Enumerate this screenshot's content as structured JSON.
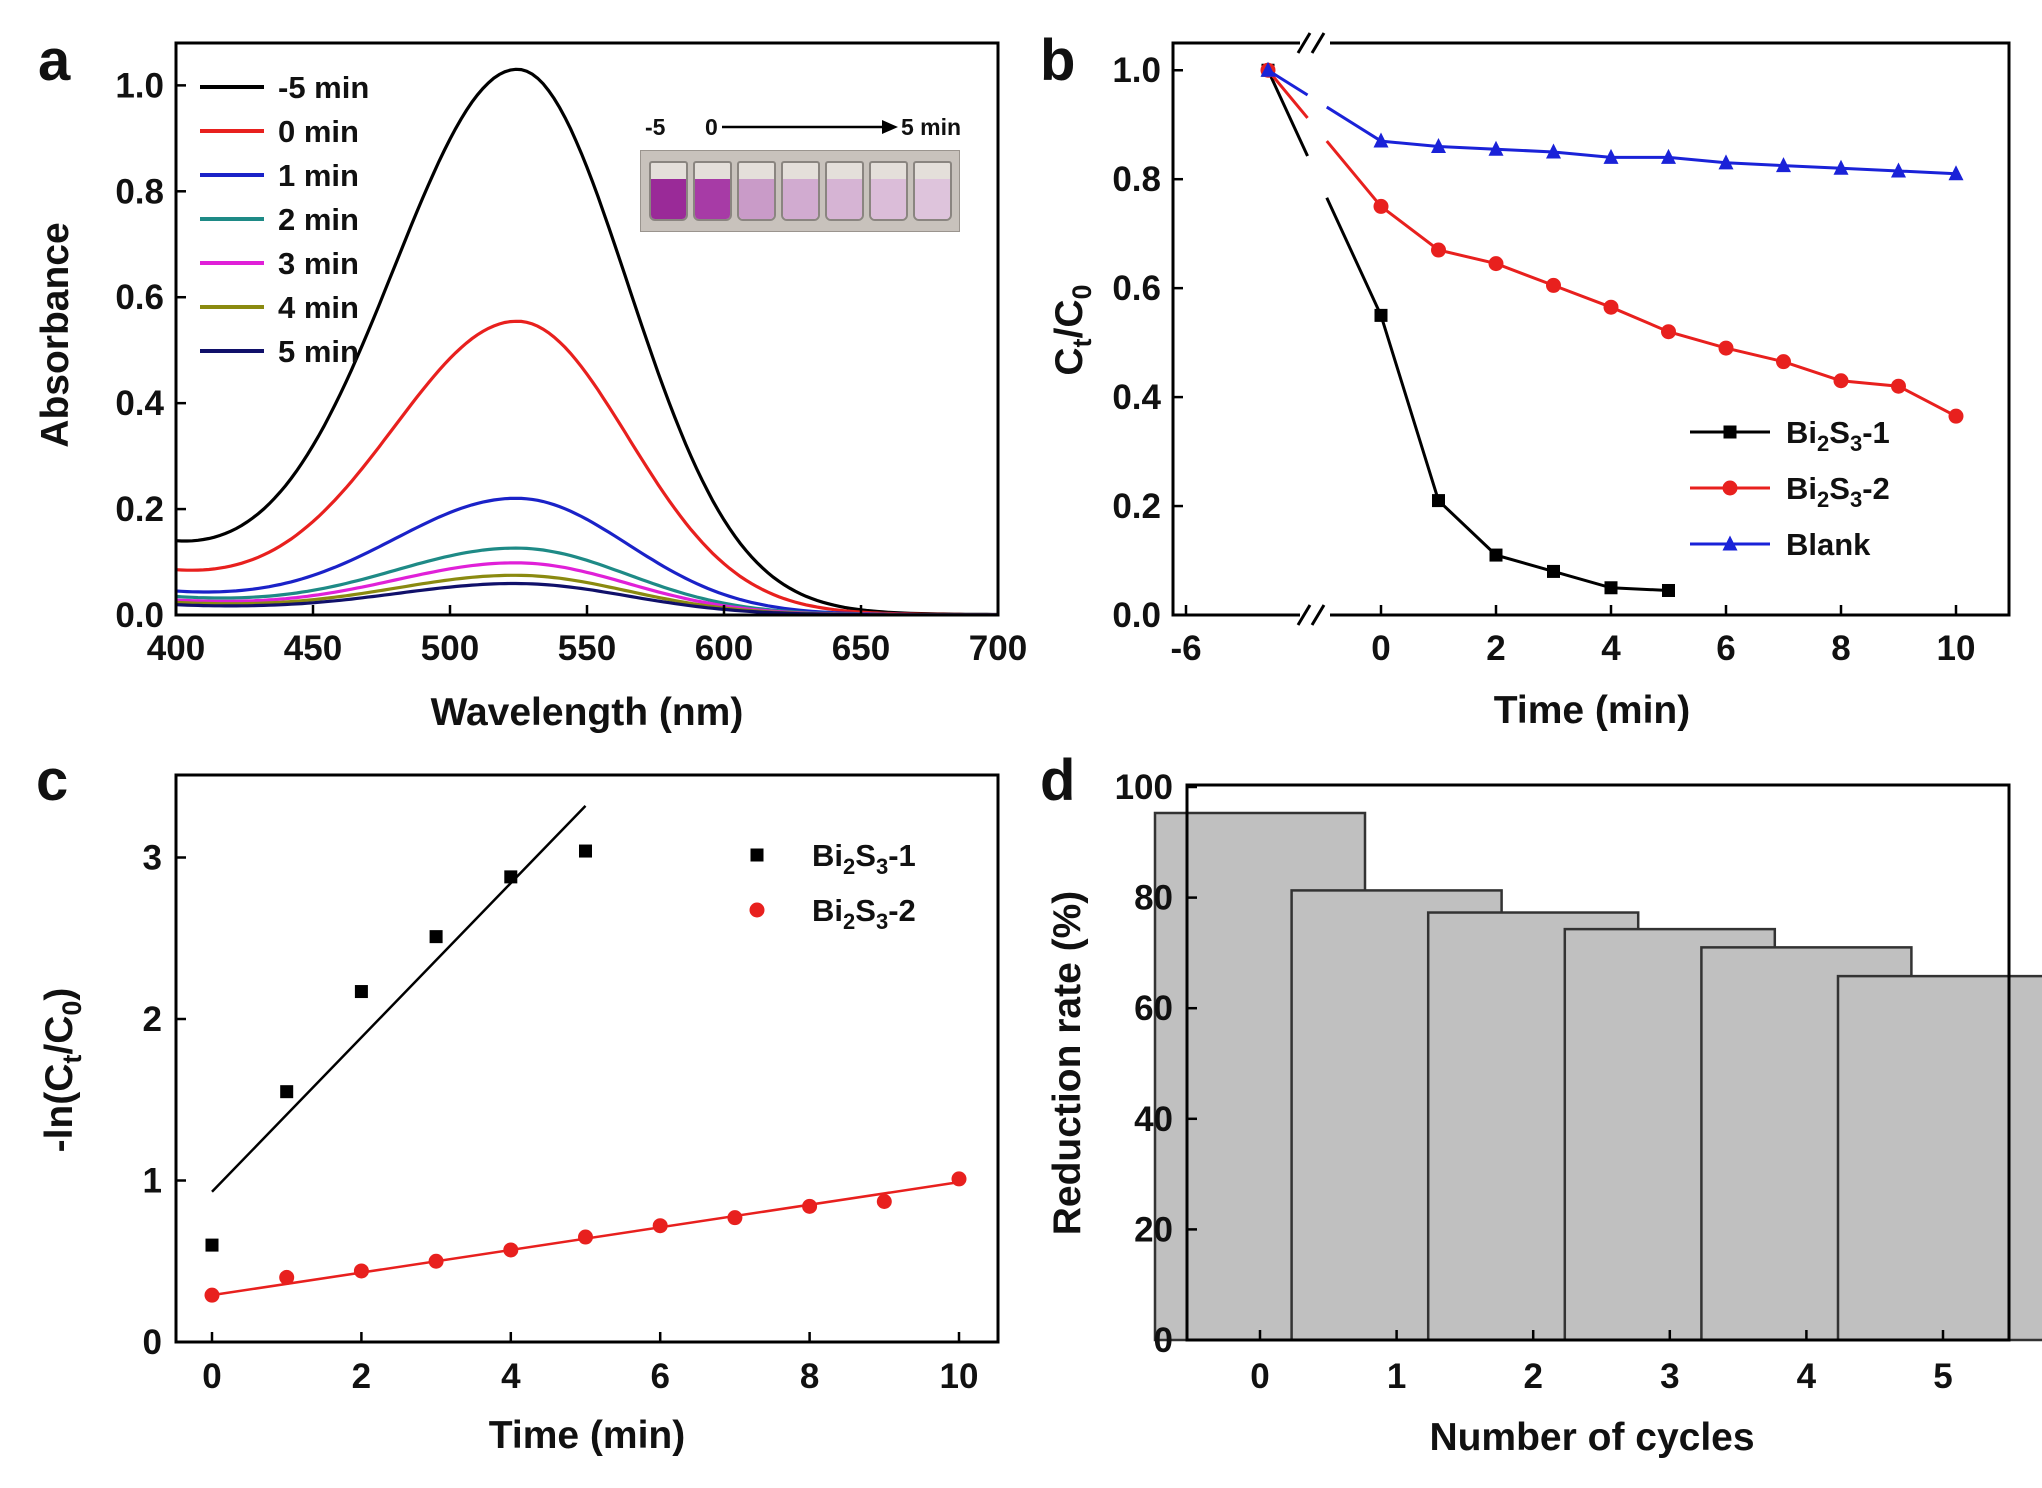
{
  "panels": {
    "a": {
      "label": "a",
      "xlabel": "Wavelength (nm)",
      "ylabel": "Absorbance",
      "xlim": [
        400,
        700
      ],
      "ylim": [
        0,
        1.08
      ],
      "xticks": [
        "400",
        "450",
        "500",
        "550",
        "600",
        "650",
        "700"
      ],
      "yticks": [
        "0.0",
        "0.2",
        "0.4",
        "0.6",
        "0.8",
        "1.0"
      ],
      "inset": {
        "start": "-5",
        "zero": "0",
        "end": "5 min",
        "vial_colors": [
          "#9a2a98",
          "#a73ba6",
          "#c99bc8",
          "#d1abd0",
          "#d6b4d4",
          "#dbbdd9",
          "#dec4dc"
        ]
      }
    },
    "b": {
      "label": "b",
      "xlabel": "Time (min)",
      "ylabel_main": "C",
      "ylabel_sub1": "t",
      "ylabel_mid": "/C",
      "ylabel_sub2": "0",
      "xticks": [
        "-6",
        "0",
        "2",
        "4",
        "6",
        "8",
        "10"
      ],
      "yticks": [
        "0.0",
        "0.2",
        "0.4",
        "0.6",
        "0.8",
        "1.0"
      ]
    },
    "c": {
      "label": "c",
      "xlabel": "Time (min)",
      "ylabel_pre": "-ln(C",
      "ylabel_sub1": "t",
      "ylabel_mid": "/C",
      "ylabel_sub2": "0",
      "ylabel_post": ")",
      "xticks": [
        "0",
        "2",
        "4",
        "6",
        "8",
        "10"
      ],
      "yticks": [
        "0",
        "1",
        "2",
        "3"
      ]
    },
    "d": {
      "label": "d",
      "xlabel": "Number of cycles",
      "ylabel": "Reduction rate (%)",
      "xticks": [
        "0",
        "1",
        "2",
        "3",
        "4",
        "5"
      ],
      "yticks": [
        "0",
        "20",
        "40",
        "60",
        "80",
        "100"
      ]
    }
  },
  "legend_names": {
    "s1": {
      "base": "Bi",
      "sub1": "2",
      "mid": "S",
      "sub2": "3",
      "suffix": "-1"
    },
    "s2": {
      "base": "Bi",
      "sub1": "2",
      "mid": "S",
      "sub2": "3",
      "suffix": "-2"
    },
    "blank": "Blank"
  },
  "chart_data": [
    {
      "panel": "a",
      "type": "line",
      "title": "",
      "xlabel": "Wavelength (nm)",
      "ylabel": "Absorbance",
      "xlim": [
        400,
        700
      ],
      "ylim": [
        0,
        1.08
      ],
      "peak_nm": 525,
      "series": [
        {
          "name": "-5 min",
          "color": "#000000",
          "peak": 1.015,
          "at_400": 0.115
        },
        {
          "name": "0 min",
          "color": "#e8201e",
          "peak": 0.545,
          "at_400": 0.072
        },
        {
          "name": "1 min",
          "color": "#1a22c8",
          "peak": 0.215,
          "at_400": 0.04
        },
        {
          "name": "2 min",
          "color": "#1e8a86",
          "peak": 0.122,
          "at_400": 0.032
        },
        {
          "name": "3 min",
          "color": "#e020d8",
          "peak": 0.095,
          "at_400": 0.026
        },
        {
          "name": "4 min",
          "color": "#8a8a10",
          "peak": 0.072,
          "at_400": 0.022
        },
        {
          "name": "5 min",
          "color": "#10106a",
          "peak": 0.057,
          "at_400": 0.018
        }
      ]
    },
    {
      "panel": "b",
      "type": "line",
      "title": "",
      "xlabel": "Time (min)",
      "ylabel": "Ct/C0",
      "xlim": [
        -6,
        11
      ],
      "ylim": [
        0,
        1.05
      ],
      "series": [
        {
          "name": "Bi2S3-1",
          "color": "#000000",
          "marker": "square",
          "x": [
            -5,
            0,
            1,
            2,
            3,
            4,
            5
          ],
          "y": [
            1.0,
            0.55,
            0.21,
            0.11,
            0.08,
            0.05,
            0.045
          ]
        },
        {
          "name": "Bi2S3-2",
          "color": "#e8201e",
          "marker": "circle",
          "x": [
            -5,
            0,
            1,
            2,
            3,
            4,
            5,
            6,
            7,
            8,
            9,
            10
          ],
          "y": [
            1.0,
            0.75,
            0.67,
            0.645,
            0.605,
            0.565,
            0.52,
            0.49,
            0.465,
            0.43,
            0.42,
            0.365
          ]
        },
        {
          "name": "Blank",
          "color": "#1a22d8",
          "marker": "triangle",
          "x": [
            -5,
            0,
            1,
            2,
            3,
            4,
            5,
            6,
            7,
            8,
            9,
            10
          ],
          "y": [
            1.0,
            0.87,
            0.86,
            0.855,
            0.85,
            0.84,
            0.84,
            0.83,
            0.825,
            0.82,
            0.815,
            0.81
          ]
        }
      ]
    },
    {
      "panel": "c",
      "type": "scatter",
      "title": "",
      "xlabel": "Time (min)",
      "ylabel": "-ln(Ct/C0)",
      "xlim": [
        -0.5,
        10.5
      ],
      "ylim": [
        0,
        3.5
      ],
      "series": [
        {
          "name": "Bi2S3-1",
          "color": "#000000",
          "marker": "square",
          "x": [
            0,
            1,
            2,
            3,
            4,
            5
          ],
          "y": [
            0.6,
            1.55,
            2.17,
            2.51,
            2.88,
            3.04
          ],
          "fit": {
            "x": [
              0,
              5
            ],
            "y": [
              0.93,
              3.32
            ]
          }
        },
        {
          "name": "Bi2S3-2",
          "color": "#e8201e",
          "marker": "circle",
          "x": [
            0,
            1,
            2,
            3,
            4,
            5,
            6,
            7,
            8,
            9,
            10
          ],
          "y": [
            0.29,
            0.4,
            0.44,
            0.5,
            0.57,
            0.65,
            0.72,
            0.77,
            0.84,
            0.87,
            1.01
          ],
          "fit": {
            "x": [
              0,
              10
            ],
            "y": [
              0.29,
              0.99
            ]
          }
        }
      ]
    },
    {
      "panel": "d",
      "type": "bar",
      "title": "",
      "xlabel": "Number of cycles",
      "ylabel": "Reduction rate (%)",
      "ylim": [
        0,
        100
      ],
      "categories": [
        "0",
        "1",
        "2",
        "3",
        "4",
        "5"
      ],
      "values": [
        95.3,
        81.3,
        77.3,
        74.3,
        71.0,
        65.8
      ],
      "color": "#c0c0c0"
    }
  ]
}
